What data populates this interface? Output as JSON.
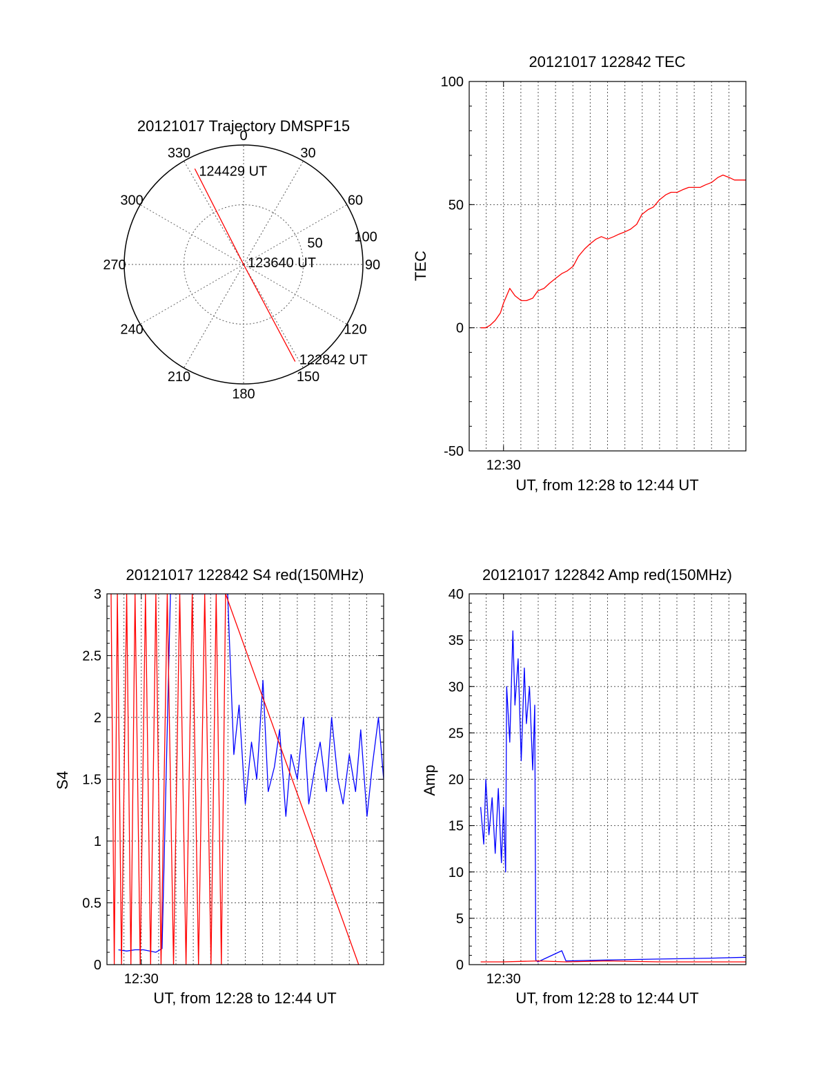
{
  "chart_data": [
    {
      "type": "polar",
      "title": "20121017 Trajectory DMSPF15",
      "angle_ticks": [
        "0",
        "30",
        "60",
        "90",
        "120",
        "150",
        "180",
        "210",
        "240",
        "270",
        "300",
        "330"
      ],
      "radius_ticks": [
        "50",
        "100"
      ],
      "rlim": [
        0,
        100
      ],
      "grid": true,
      "series": [
        {
          "color": "#ff0000",
          "points": [
            {
              "azimuth": 333,
              "radius": 90,
              "label": "124429 UT"
            },
            {
              "azimuth": 90,
              "radius": 0,
              "label": "123640 UT"
            },
            {
              "azimuth": 152,
              "radius": 92,
              "label": "122842 UT"
            }
          ]
        }
      ]
    },
    {
      "type": "line",
      "title": "20121017 122842 TEC",
      "xlabel": "UT, from 12:28 to 12:44 UT",
      "ylabel": "TEC",
      "x_tick_label": "12:30",
      "xlim": [
        12.467,
        12.733
      ],
      "ylim": [
        -50,
        100
      ],
      "y_ticks": [
        "-50",
        "0",
        "50",
        "100"
      ],
      "grid": true,
      "series": [
        {
          "color": "#ff0000",
          "x": [
            12.478,
            12.483,
            12.487,
            12.492,
            12.497,
            12.5,
            12.506,
            12.511,
            12.517,
            12.522,
            12.528,
            12.533,
            12.539,
            12.544,
            12.55,
            12.556,
            12.561,
            12.567,
            12.572,
            12.578,
            12.583,
            12.589,
            12.594,
            12.6,
            12.606,
            12.611,
            12.617,
            12.622,
            12.628,
            12.633,
            12.639,
            12.644,
            12.65,
            12.656,
            12.661,
            12.667,
            12.672,
            12.678,
            12.683,
            12.689,
            12.694,
            12.7,
            12.706,
            12.711,
            12.717,
            12.722,
            12.728,
            12.733
          ],
          "y": [
            0,
            0,
            1,
            3,
            6,
            10,
            16,
            13,
            11,
            11,
            12,
            15,
            16,
            18,
            20,
            22,
            23,
            25,
            29,
            32,
            34,
            36,
            37,
            36,
            37,
            38,
            39,
            40,
            42,
            46,
            48,
            49,
            52,
            54,
            55,
            55,
            56,
            57,
            57,
            57,
            58,
            59,
            61,
            62,
            61,
            60,
            60,
            60
          ]
        }
      ]
    },
    {
      "type": "line",
      "title": "20121017 122842 S4 red(150MHz)",
      "xlabel": "UT, from 12:28 to 12:44 UT",
      "ylabel": "S4",
      "x_tick_label": "12:30",
      "xlim": [
        12.467,
        12.733
      ],
      "ylim": [
        0,
        3
      ],
      "y_ticks": [
        "0",
        "0.5",
        "1",
        "1.5",
        "2",
        "2.5",
        "3"
      ],
      "grid": true,
      "series": [
        {
          "color": "#0000ff",
          "x": [
            12.478,
            12.486,
            12.494,
            12.502,
            12.508,
            12.514,
            12.52,
            12.528,
            12.535,
            12.542,
            12.55,
            12.556,
            12.567,
            12.572,
            12.578,
            12.583,
            12.589,
            12.594,
            12.6,
            12.606,
            12.611,
            12.617,
            12.622,
            12.628,
            12.633,
            12.639,
            12.644,
            12.65,
            12.656,
            12.661,
            12.667,
            12.672,
            12.678,
            12.683,
            12.689,
            12.694,
            12.7,
            12.706,
            12.711,
            12.717,
            12.722,
            12.728,
            12.733
          ],
          "y": [
            0.12,
            0.11,
            0.12,
            0.12,
            0.11,
            0.1,
            0.13,
            3,
            3,
            3,
            3,
            3,
            3,
            3,
            3,
            3,
            1.7,
            2.1,
            1.3,
            1.8,
            1.5,
            2.3,
            1.4,
            1.6,
            1.9,
            1.2,
            1.7,
            1.5,
            2.0,
            1.3,
            1.6,
            1.8,
            1.4,
            2.0,
            1.5,
            1.3,
            1.7,
            1.4,
            1.9,
            1.2,
            1.6,
            2.0,
            1.5
          ]
        },
        {
          "color": "#ff0000",
          "x": [
            12.471,
            12.474,
            12.477,
            12.481,
            12.486,
            12.49,
            12.494,
            12.499,
            12.504,
            12.509,
            12.514,
            12.519,
            12.525,
            12.531,
            12.537,
            12.543,
            12.549,
            12.555,
            12.561,
            12.567,
            12.572,
            12.577,
            12.581,
            12.709
          ],
          "y": [
            3,
            0,
            3,
            0,
            3,
            0,
            3,
            0,
            3,
            0,
            3,
            0,
            3,
            0,
            3,
            0,
            3,
            0,
            3,
            0,
            3,
            0,
            3,
            0
          ]
        }
      ]
    },
    {
      "type": "line",
      "title": "20121017 122842 Amp red(150MHz)",
      "xlabel": "UT, from 12:28 to 12:44 UT",
      "ylabel": "Amp",
      "x_tick_label": "12:30",
      "xlim": [
        12.467,
        12.733
      ],
      "ylim": [
        0,
        40
      ],
      "y_ticks": [
        "0",
        "5",
        "10",
        "15",
        "20",
        "25",
        "30",
        "35",
        "40"
      ],
      "grid": true,
      "series": [
        {
          "color": "#0000ff",
          "x": [
            12.478,
            12.481,
            12.483,
            12.486,
            12.489,
            12.492,
            12.495,
            12.498,
            12.5,
            12.502,
            12.503,
            12.506,
            12.509,
            12.511,
            12.514,
            12.517,
            12.52,
            12.522,
            12.525,
            12.528,
            12.53,
            12.531,
            12.533,
            12.556,
            12.56,
            12.6,
            12.65,
            12.7,
            12.733
          ],
          "y": [
            17,
            13,
            20,
            14,
            18,
            12,
            19,
            11,
            17,
            10,
            30,
            24,
            36,
            28,
            33,
            22,
            32,
            26,
            30,
            21,
            28,
            0.5,
            0.3,
            1.5,
            0.4,
            0.5,
            0.6,
            0.7,
            0.8
          ]
        },
        {
          "color": "#ff0000",
          "x": [
            12.478,
            12.5,
            12.533,
            12.56,
            12.6,
            12.65,
            12.733
          ],
          "y": [
            0.3,
            0.3,
            0.4,
            0.3,
            0.4,
            0.3,
            0.3
          ]
        }
      ]
    }
  ]
}
